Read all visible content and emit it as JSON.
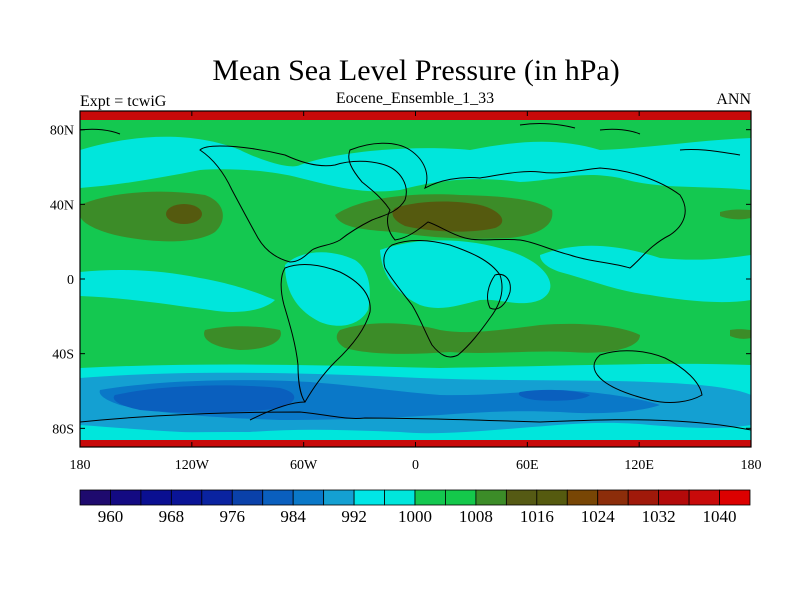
{
  "header": {
    "title": "Mean Sea Level Pressure (in hPa)",
    "left_label": "Expt = tcwiG",
    "center_label": "Eocene_Ensemble_1_33",
    "right_label": "ANN"
  },
  "axes": {
    "lat_ticks": [
      "80N",
      "40N",
      "0",
      "40S",
      "80S"
    ],
    "lat_values": [
      80,
      40,
      0,
      -40,
      -80
    ],
    "lon_ticks": [
      "180",
      "120W",
      "60W",
      "0",
      "60E",
      "120E",
      "180"
    ],
    "lon_values": [
      -180,
      -120,
      -60,
      0,
      60,
      120,
      180
    ],
    "lon_range": [
      -180,
      180
    ],
    "lat_range": [
      -90,
      90
    ]
  },
  "colorbar": {
    "labels": [
      "960",
      "968",
      "976",
      "984",
      "992",
      "1000",
      "1008",
      "1016",
      "1024",
      "1032",
      "1040"
    ],
    "colors": [
      "#1e0a6e",
      "#130a82",
      "#0a0f91",
      "#0a1496",
      "#0a23a0",
      "#0a41aa",
      "#0a5fbe",
      "#0a78c8",
      "#14a0d2",
      "#00e6e6",
      "#00e6dc",
      "#14c850",
      "#14c84b",
      "#3c8c28",
      "#555a14",
      "#555a0f",
      "#784605",
      "#8c2d0a",
      "#a0190a",
      "#b40a0a",
      "#c80a0a",
      "#dc0000"
    ]
  },
  "colors": {
    "ocean_base": "#14c850",
    "cyan": "#00e6dc",
    "olive": "#3c8c28",
    "brown": "#555a0f",
    "blue_light": "#14a0d2",
    "blue_mid": "#0a78c8",
    "blue_dark": "#0a5fbe",
    "red_band": "#c80a0a"
  }
}
